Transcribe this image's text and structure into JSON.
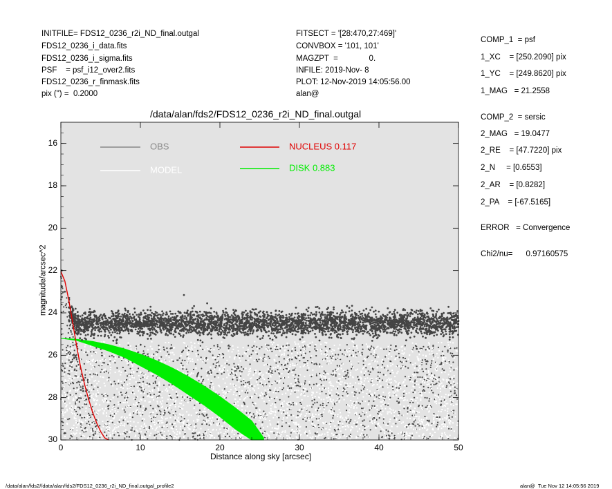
{
  "header_left": [
    "INITFILE= FDS12_0236_r2i_ND_final.outgal",
    "FDS12_0236_i_data.fits",
    "FDS12_0236_i_sigma.fits",
    "PSF    = psf_i12_over2.fits",
    "FDS12_0236_r_finmask.fits",
    "pix (\") =  0.2000"
  ],
  "header_mid": [
    "FITSECT = '[28:470,27:469]'",
    "CONVBOX = '101, 101'",
    "MAGZPT  =              0.",
    "INFILE: 2019-Nov- 8",
    "PLOT: 12-Nov-2019 14:05:56.00",
    "alan@"
  ],
  "side": [
    "COMP_1  = psf",
    "1_XC    = [250.2090] pix",
    "1_YC    = [249.8620] pix",
    "1_MAG   = 21.2558",
    "COMP_2  = sersic",
    "2_MAG   = 19.0477",
    "2_RE    = [47.7220] pix",
    "2_N     = [0.6553]",
    "2_AR    = [0.8282]",
    "2_PA    = [-67.5165]",
    "ERROR   = Convergence",
    "Chi2/nu=      0.97160575"
  ],
  "footer_left": "/data/alan/fds2//data/alan/fds2/FDS12_0236_r2i_ND_final.outgal_profile2",
  "footer_right": "alan@  Tue Nov 12 14:05:56 2019",
  "colors": {
    "panel_bg": "#e3e3e3",
    "obs": "#444444",
    "model": "#ffffff",
    "nucleus": "#e00000",
    "disk": "#00ee00"
  },
  "chart_data": {
    "type": "scatter",
    "title": "/data/alan/fds2/FDS12_0236_r2i_ND_final.outgal",
    "xlabel": "Distance along sky [arcsec]",
    "ylabel": "magnitude/arcsec^2",
    "xlim": [
      0,
      50
    ],
    "ylim": [
      30,
      15
    ],
    "y_inverted": true,
    "xticks": [
      0,
      10,
      20,
      30,
      40,
      50
    ],
    "yticks": [
      16,
      18,
      20,
      22,
      24,
      26,
      28,
      30
    ],
    "legend": [
      {
        "label": "OBS",
        "color": "#888888"
      },
      {
        "label": "MODEL",
        "color": "#ffffff"
      },
      {
        "label": "NUCLEUS  0.117",
        "color": "#e00000"
      },
      {
        "label": "DISK  0.883",
        "color": "#00ee00"
      }
    ],
    "series": [
      {
        "name": "OBS",
        "description_points": "dense dark scatter: upper band mag ~23.9–25.2 across x 1–50; sparse scatter below 25.5–30",
        "band_upper": {
          "x": [
            1,
            50
          ],
          "y_center": 24.5,
          "y_spread": 0.7
        },
        "near_center": {
          "x": [
            0.1,
            0.5,
            1.0,
            1.5
          ],
          "y": [
            22.0,
            23.0,
            23.5,
            23.8
          ]
        }
      },
      {
        "name": "NUCLEUS  0.117",
        "x": [
          0,
          0.5,
          1.0,
          1.5,
          2.0,
          2.5,
          3.0,
          3.5,
          4.0,
          4.5,
          5.0,
          5.5,
          6.0
        ],
        "y": [
          22.05,
          22.5,
          23.4,
          24.5,
          25.6,
          26.6,
          27.4,
          28.1,
          28.7,
          29.2,
          29.6,
          29.9,
          30.0
        ]
      },
      {
        "name": "DISK  0.883",
        "x": [
          0,
          2,
          4,
          6,
          8,
          10,
          12,
          14,
          16,
          18,
          20,
          22,
          24,
          25.5
        ],
        "y_upper": [
          25.2,
          25.25,
          25.35,
          25.5,
          25.7,
          25.95,
          26.25,
          26.6,
          27.0,
          27.45,
          27.95,
          28.5,
          29.1,
          29.9
        ],
        "y_lower": [
          25.2,
          25.3,
          25.55,
          25.8,
          26.1,
          26.5,
          26.9,
          27.35,
          27.85,
          28.35,
          28.9,
          29.5,
          30.0,
          30.0
        ]
      }
    ]
  }
}
